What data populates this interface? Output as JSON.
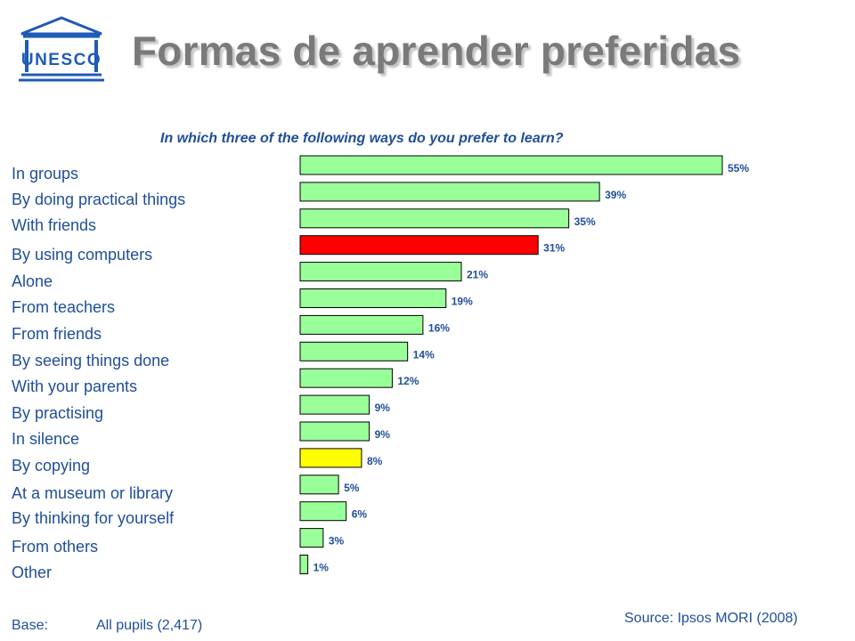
{
  "header": {
    "logo_text": "UNESCO",
    "title": "Formas de aprender preferidas"
  },
  "footer": {
    "base_label": "Base:",
    "base_value": "All pupils (2,417)",
    "source": "Source: Ipsos MORI (2008)"
  },
  "colors": {
    "default_bar": "#99ff99",
    "highlight_computers": "#ff0000",
    "highlight_copying": "#ffff00",
    "text": "#1f4e9a",
    "title": "#7a7a7a"
  },
  "chart_data": {
    "type": "bar",
    "orientation": "horizontal",
    "title": "In which three of the following ways do you prefer to learn?",
    "xlim": [
      0,
      55
    ],
    "grid": false,
    "value_suffix": "%",
    "categories": [
      "In groups",
      "By doing practical things",
      "With friends",
      "By using computers",
      "Alone",
      "From teachers",
      "From friends",
      "By seeing things done",
      "With your parents",
      "By practising",
      "In silence",
      "By copying",
      "At a museum or library",
      "By thinking for yourself",
      "From others",
      "Other"
    ],
    "values": [
      55,
      39,
      35,
      31,
      21,
      19,
      16,
      14,
      12,
      9,
      9,
      8,
      5,
      6,
      3,
      1
    ],
    "bar_colors": [
      "#99ff99",
      "#99ff99",
      "#99ff99",
      "#ff0000",
      "#99ff99",
      "#99ff99",
      "#99ff99",
      "#99ff99",
      "#99ff99",
      "#99ff99",
      "#99ff99",
      "#ffff00",
      "#99ff99",
      "#99ff99",
      "#99ff99",
      "#99ff99"
    ],
    "value_labels": [
      "55%",
      "39%",
      "35%",
      "31%",
      "21%",
      "19%",
      "16%",
      "14%",
      "12%",
      "9%",
      "9%",
      "8%",
      "5%",
      "6%",
      "3%",
      "1%"
    ]
  }
}
